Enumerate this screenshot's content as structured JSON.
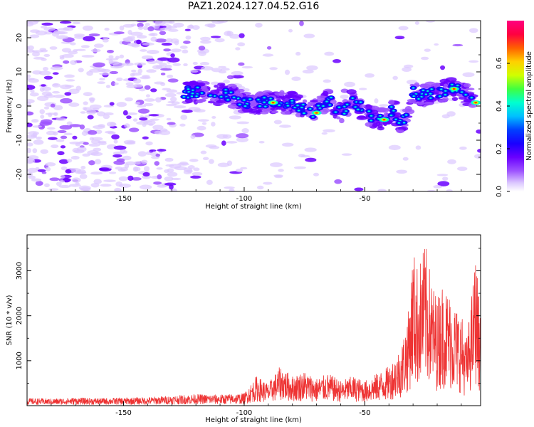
{
  "title": "PAZ1.2024.127.04.52.G16",
  "chart_data": [
    {
      "type": "heatmap",
      "xlabel": "Height of straight line (km)",
      "ylabel": "Frequency (Hz)",
      "xlim": [
        -190,
        -2
      ],
      "ylim": [
        -25,
        25
      ],
      "xticks": [
        -150,
        -100,
        -50
      ],
      "yticks": [
        -20,
        -10,
        0,
        10,
        20
      ],
      "colorbar": {
        "label": "Normalized spectral amplitude",
        "range": [
          0,
          0.8
        ],
        "ticks": [
          0.0,
          0.2,
          0.4,
          0.6
        ],
        "colormap": [
          "#ffffff",
          "#dcc8ff",
          "#9e54ff",
          "#6a00ff",
          "#1a00ff",
          "#0040ff",
          "#00ffd0",
          "#40ff40",
          "#d0ff00",
          "#ffd000",
          "#ff4000",
          "#ff0040",
          "#ff0080"
        ]
      },
      "ridge": [
        {
          "x": -125,
          "y": 4
        },
        {
          "x": -115,
          "y": 4
        },
        {
          "x": -105,
          "y": 3
        },
        {
          "x": -100,
          "y": 1
        },
        {
          "x": -90,
          "y": 1
        },
        {
          "x": -80,
          "y": 1
        },
        {
          "x": -72,
          "y": -2
        },
        {
          "x": -65,
          "y": 2
        },
        {
          "x": -60,
          "y": -2
        },
        {
          "x": -55,
          "y": 2
        },
        {
          "x": -48,
          "y": -3
        },
        {
          "x": -42,
          "y": -4
        },
        {
          "x": -38,
          "y": -1
        },
        {
          "x": -35,
          "y": -6
        },
        {
          "x": -30,
          "y": 4
        },
        {
          "x": -25,
          "y": 3
        },
        {
          "x": -20,
          "y": 4
        },
        {
          "x": -15,
          "y": 5
        },
        {
          "x": -10,
          "y": 5
        },
        {
          "x": -5,
          "y": 1
        }
      ]
    },
    {
      "type": "line",
      "xlabel": "Height of straight line (km)",
      "ylabel": "SNR (10 * v/v)",
      "xlim": [
        -190,
        -2
      ],
      "ylim": [
        0,
        3800
      ],
      "xticks": [
        -150,
        -100,
        -50
      ],
      "yticks": [
        1000,
        2000,
        3000
      ],
      "color": "#ee3333",
      "series": [
        {
          "x": [
            -190,
            -180,
            -170,
            -160,
            -150,
            -140,
            -130,
            -120,
            -110,
            -100,
            -95,
            -90,
            -85,
            -80,
            -75,
            -70,
            -65,
            -60,
            -55,
            -50,
            -45,
            -40,
            -35,
            -32,
            -30,
            -28,
            -25,
            -22,
            -20,
            -18,
            -15,
            -12,
            -10,
            -8,
            -6,
            -4,
            -2
          ],
          "y": [
            150,
            140,
            160,
            150,
            160,
            170,
            200,
            230,
            220,
            250,
            600,
            450,
            800,
            600,
            700,
            550,
            650,
            500,
            600,
            500,
            650,
            800,
            1200,
            1900,
            3200,
            2800,
            3300,
            2500,
            2200,
            2500,
            2300,
            2000,
            1900,
            1300,
            2100,
            3100,
            1700
          ]
        }
      ]
    }
  ]
}
